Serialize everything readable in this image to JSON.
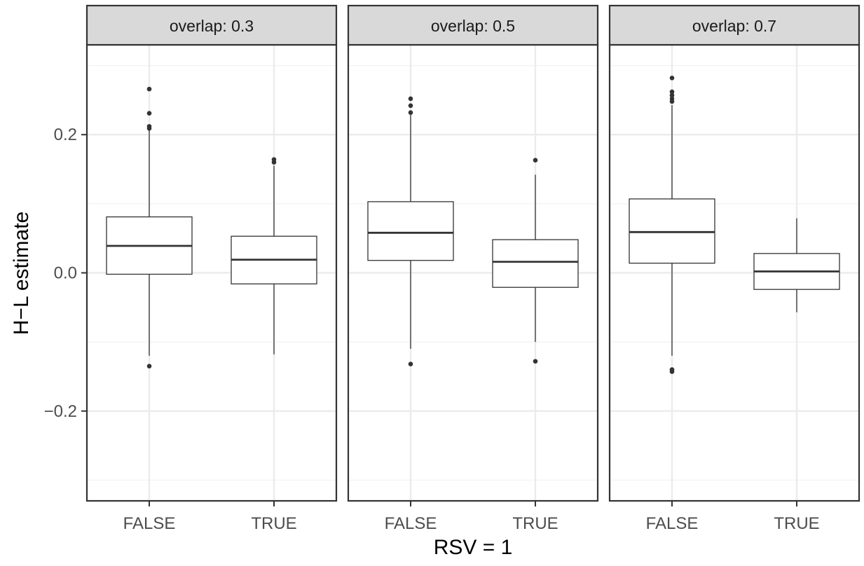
{
  "chart_data": {
    "type": "boxplot",
    "xlabel": "RSV = 1",
    "ylabel": "H−L estimate",
    "ylim": [
      -0.33,
      0.33
    ],
    "y_ticks": [
      -0.2,
      0.0,
      0.2
    ],
    "y_tick_labels": [
      "−0.2",
      "0.0",
      "0.2"
    ],
    "grid": true,
    "categories": [
      "FALSE",
      "TRUE"
    ],
    "facets": [
      {
        "label": "overlap: 0.3",
        "boxes": [
          {
            "category": "FALSE",
            "lower_whisker": -0.12,
            "q1": -0.002,
            "median": 0.039,
            "q3": 0.081,
            "upper_whisker": 0.207,
            "outliers": [
              0.266,
              0.231,
              0.212,
              0.209,
              -0.135
            ]
          },
          {
            "category": "TRUE",
            "lower_whisker": -0.118,
            "q1": -0.016,
            "median": 0.019,
            "q3": 0.053,
            "upper_whisker": 0.155,
            "outliers": [
              0.164,
              0.16
            ]
          }
        ]
      },
      {
        "label": "overlap: 0.5",
        "boxes": [
          {
            "category": "FALSE",
            "lower_whisker": -0.11,
            "q1": 0.018,
            "median": 0.058,
            "q3": 0.103,
            "upper_whisker": 0.23,
            "outliers": [
              0.252,
              0.242,
              0.232,
              -0.132
            ]
          },
          {
            "category": "TRUE",
            "lower_whisker": -0.1,
            "q1": -0.021,
            "median": 0.016,
            "q3": 0.048,
            "upper_whisker": 0.142,
            "outliers": [
              0.163,
              -0.128
            ]
          }
        ]
      },
      {
        "label": "overlap: 0.7",
        "boxes": [
          {
            "category": "FALSE",
            "lower_whisker": -0.12,
            "q1": 0.014,
            "median": 0.059,
            "q3": 0.107,
            "upper_whisker": 0.243,
            "outliers": [
              0.282,
              0.262,
              0.257,
              0.252,
              0.248,
              -0.14,
              -0.143
            ]
          },
          {
            "category": "TRUE",
            "lower_whisker": -0.057,
            "q1": -0.024,
            "median": 0.002,
            "q3": 0.028,
            "upper_whisker": 0.079,
            "outliers": []
          }
        ]
      }
    ]
  }
}
